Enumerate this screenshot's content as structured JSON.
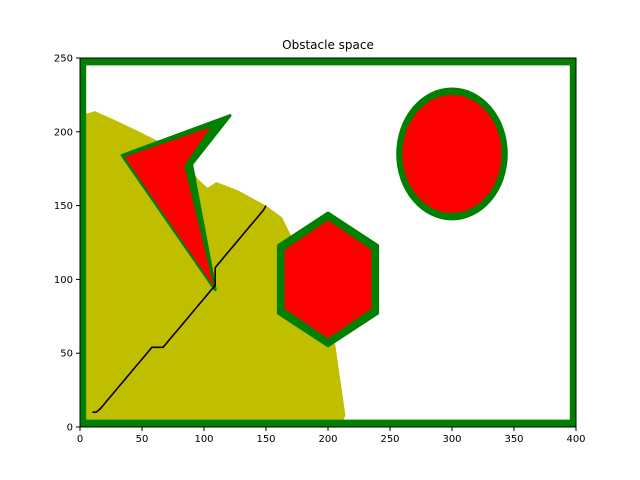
{
  "chart_data": {
    "type": "scatter",
    "title": "Obstacle space",
    "xlabel": "",
    "ylabel": "",
    "xlim": [
      0,
      400
    ],
    "ylim": [
      0,
      250
    ],
    "x_ticks": [
      0,
      50,
      100,
      150,
      200,
      250,
      300,
      350,
      400
    ],
    "y_ticks": [
      0,
      50,
      100,
      150,
      200,
      250
    ],
    "grid": false,
    "colors": {
      "explored": "#bfbf00",
      "clearance": "#008000",
      "obstacle": "#ff0000",
      "path": "#000000",
      "free": "#ffffff"
    },
    "explored_region": {
      "polygon": [
        [
          4,
          212
        ],
        [
          12,
          214
        ],
        [
          28,
          208
        ],
        [
          43,
          202
        ],
        [
          60,
          195
        ],
        [
          72,
          190
        ],
        [
          85,
          181
        ],
        [
          95,
          168
        ],
        [
          103,
          162
        ],
        [
          110,
          166
        ],
        [
          128,
          160
        ],
        [
          150,
          150
        ],
        [
          163,
          142
        ],
        [
          170,
          130
        ],
        [
          178,
          110
        ],
        [
          190,
          90
        ],
        [
          200,
          70
        ],
        [
          206,
          55
        ],
        [
          212,
          20
        ],
        [
          214,
          8
        ],
        [
          212,
          4
        ],
        [
          4,
          4
        ]
      ]
    },
    "boundary_wall": {
      "x": [
        0,
        400
      ],
      "y": [
        0,
        250
      ],
      "thickness": 5
    },
    "obstacles": [
      {
        "name": "arrow-polygon",
        "polygon": [
          [
            36,
            183
          ],
          [
            105,
            203
          ],
          [
            84,
            177
          ],
          [
            108,
            95
          ]
        ],
        "clearance_polygon": [
          [
            34,
            184
          ],
          [
            121,
            211
          ],
          [
            90,
            178
          ],
          [
            109,
            93
          ]
        ]
      },
      {
        "name": "hexagon",
        "polygon": [
          [
            200,
            140
          ],
          [
            235,
            120
          ],
          [
            235,
            80
          ],
          [
            200,
            60
          ],
          [
            165,
            80
          ],
          [
            165,
            120
          ]
        ],
        "clearance_polygon": [
          [
            200,
            145
          ],
          [
            240,
            123
          ],
          [
            240,
            77
          ],
          [
            200,
            55
          ],
          [
            160,
            77
          ],
          [
            160,
            123
          ]
        ]
      },
      {
        "name": "ellipse",
        "center": [
          300,
          185
        ],
        "rx": 40,
        "ry": 40,
        "clearance": 5
      }
    ],
    "path": {
      "x": [
        10,
        13,
        16,
        19,
        22,
        25,
        28,
        31,
        34,
        37,
        40,
        43,
        46,
        49,
        52,
        55,
        58,
        61,
        64,
        67,
        70,
        73,
        76,
        79,
        82,
        85,
        88,
        91,
        94,
        97,
        100,
        103,
        106,
        109,
        109,
        109,
        112,
        115,
        118,
        121,
        124,
        127,
        130,
        133,
        136,
        139,
        142,
        145,
        148,
        150
      ],
      "y": [
        10,
        10,
        12,
        15,
        18,
        21,
        24,
        27,
        30,
        33,
        36,
        39,
        42,
        45,
        48,
        51,
        54,
        54,
        54,
        54,
        57,
        60,
        63,
        66,
        69,
        72,
        75,
        78,
        81,
        84,
        87,
        90,
        93,
        96,
        102,
        108,
        111,
        114,
        117,
        120,
        123,
        126,
        129,
        132,
        135,
        138,
        141,
        144,
        147,
        150
      ]
    }
  }
}
